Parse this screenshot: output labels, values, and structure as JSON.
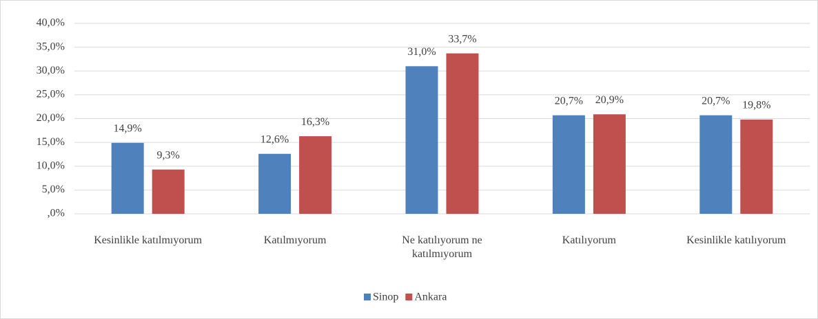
{
  "chart_data": {
    "type": "bar",
    "categories": [
      "Kesinlikle katılmıyorum",
      "Katılmıyorum",
      "Ne katılıyorum ne katılmıyorum",
      "Katılıyorum",
      "Kesinlikle katılıyorum"
    ],
    "series": [
      {
        "name": "Sinop",
        "color": "#4f81bd",
        "values": [
          14.9,
          12.6,
          31.0,
          20.7,
          20.7
        ],
        "value_labels": [
          "14,9%",
          "12,6%",
          "31,0%",
          "20,7%",
          "20,7%"
        ]
      },
      {
        "name": "Ankara",
        "color": "#c0504d",
        "values": [
          9.3,
          16.3,
          33.7,
          20.9,
          19.8
        ],
        "value_labels": [
          "9,3%",
          "16,3%",
          "33,7%",
          "20,9%",
          "19,8%"
        ]
      }
    ],
    "ylim": [
      0,
      40
    ],
    "yticks": [
      {
        "value": 0,
        "label": ",0%"
      },
      {
        "value": 5,
        "label": "5,0%"
      },
      {
        "value": 10,
        "label": "10,0%"
      },
      {
        "value": 15,
        "label": "15,0%"
      },
      {
        "value": 20,
        "label": "20,0%"
      },
      {
        "value": 25,
        "label": "25,0%"
      },
      {
        "value": 30,
        "label": "30,0%"
      },
      {
        "value": 35,
        "label": "35,0%"
      },
      {
        "value": 40,
        "label": "40,0%"
      }
    ],
    "grid": true,
    "legend": "bottom"
  }
}
